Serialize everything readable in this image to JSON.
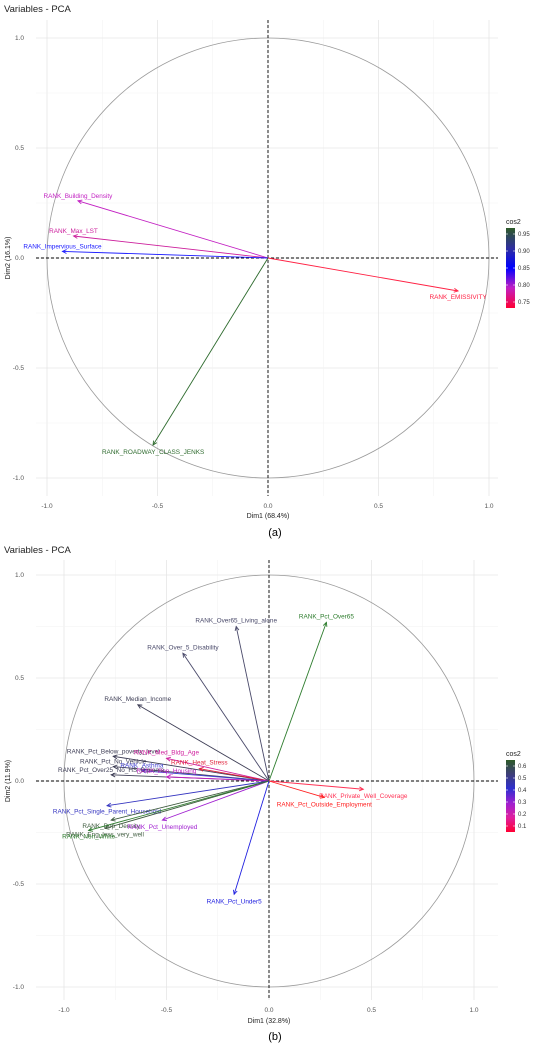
{
  "chart_data": [
    {
      "type": "scatter",
      "subtype": "pca-variable-correlation-circle",
      "title": "Variables - PCA",
      "xlabel": "Dim1 (68.4%)",
      "ylabel": "Dim2 (16.1%)",
      "xlim": [
        -1.1,
        1.1
      ],
      "ylim": [
        -1.05,
        1.05
      ],
      "xticks": [
        "-1.0",
        "-0.5",
        "0.0",
        "0.5",
        "1.0"
      ],
      "yticks": [
        "-1.0",
        "-0.5",
        "0.0",
        "0.5",
        "1.0"
      ],
      "grid": true,
      "legend": {
        "title": "cos2",
        "placement": "right",
        "labels": [
          "0.95",
          "0.90",
          "0.85",
          "0.80",
          "0.75"
        ],
        "colors": [
          "#2d5a27",
          "#2f2f9e",
          "#0000ff",
          "#c21fc2",
          "#ff0033"
        ]
      },
      "caption": "(a)",
      "series": [
        {
          "label": "RANK_Building_Density",
          "x": -0.86,
          "y": 0.26,
          "color": "#c21fc2"
        },
        {
          "label": "RANK_Max_LST",
          "x": -0.88,
          "y": 0.1,
          "color": "#cc1f9c"
        },
        {
          "label": "RANK_Impervious_Surface",
          "x": -0.93,
          "y": 0.03,
          "color": "#1a1aff"
        },
        {
          "label": "RANK_EMISSIVITY",
          "x": 0.86,
          "y": -0.15,
          "color": "#ff2244"
        },
        {
          "label": "RANK_ROADWAY_CLASS_JENKS",
          "x": -0.52,
          "y": -0.85,
          "color": "#2e6b2e"
        }
      ]
    },
    {
      "type": "scatter",
      "subtype": "pca-variable-correlation-circle",
      "title": "Variables - PCA",
      "xlabel": "Dim1 (32.8%)",
      "ylabel": "Dim2 (11.9%)",
      "xlim": [
        -1.1,
        1.1
      ],
      "ylim": [
        -1.05,
        1.05
      ],
      "xticks": [
        "-1.0",
        "-0.5",
        "0.0",
        "0.5",
        "1.0"
      ],
      "yticks": [
        "-1.0",
        "-0.5",
        "0.0",
        "0.5",
        "1.0"
      ],
      "grid": true,
      "legend": {
        "title": "cos2",
        "placement": "right",
        "labels": [
          "0.6",
          "0.5",
          "0.4",
          "0.3",
          "0.2",
          "0.1"
        ],
        "colors": [
          "#2d5a27",
          "#3e3e7a",
          "#2f2fd0",
          "#9e1fd0",
          "#e01f9e",
          "#ff0033"
        ]
      },
      "caption": "(b)",
      "series": [
        {
          "label": "RANK_Pct_Over65",
          "x": 0.28,
          "y": 0.77,
          "color": "#2e7d2e"
        },
        {
          "label": "RANK_Over65_Living_alone",
          "x": -0.16,
          "y": 0.75,
          "color": "#4a4a6a"
        },
        {
          "label": "RANK_Over_5_Disability",
          "x": -0.42,
          "y": 0.62,
          "color": "#4a4a6a"
        },
        {
          "label": "RANK_Median_Income",
          "x": -0.64,
          "y": 0.37,
          "color": "#3d3d55"
        },
        {
          "label": "RANK_Pct_Below_poverty_level",
          "x": -0.76,
          "y": 0.12,
          "color": "#3d3d55"
        },
        {
          "label": "RANK_Med_Bldg_Age",
          "x": -0.5,
          "y": 0.11,
          "color": "#d01f9e"
        },
        {
          "label": "RANK_Heat_Stress",
          "x": -0.34,
          "y": 0.06,
          "color": "#e0203a"
        },
        {
          "label": "RANK_Pct_No_Vehicle",
          "x": -0.76,
          "y": 0.07,
          "color": "#3d3d55"
        },
        {
          "label": "RANK_Asthma",
          "x": -0.62,
          "y": 0.05,
          "color": "#4040d0"
        },
        {
          "label": "RANK_Pct_Over25_No_HS_Diploma",
          "x": -0.77,
          "y": 0.03,
          "color": "#3d3d55"
        },
        {
          "label": "RANK_Pop_Housing",
          "x": -0.5,
          "y": 0.02,
          "color": "#c21fc2"
        },
        {
          "label": "RANK_Private_Well_Coverage",
          "x": 0.46,
          "y": -0.04,
          "color": "#ff3355"
        },
        {
          "label": "RANK_Pct_Outside_Employment",
          "x": 0.27,
          "y": -0.08,
          "color": "#ff2020"
        },
        {
          "label": "RANK_Pct_Single_Parent_Household",
          "x": -0.79,
          "y": -0.12,
          "color": "#3535c0"
        },
        {
          "label": "RANK_Pop_Density",
          "x": -0.77,
          "y": -0.19,
          "color": "#3d5a3d"
        },
        {
          "label": "RANK_Pct_Unemployed",
          "x": -0.52,
          "y": -0.19,
          "color": "#a01fd0"
        },
        {
          "label": "RANK_Eng_less_very_well",
          "x": -0.8,
          "y": -0.23,
          "color": "#3d5a3d"
        },
        {
          "label": "RANK_Non_White",
          "x": -0.88,
          "y": -0.24,
          "color": "#2e7d2e"
        },
        {
          "label": "RANK_Pct_Under5",
          "x": -0.17,
          "y": -0.55,
          "color": "#2020e0"
        }
      ]
    }
  ]
}
